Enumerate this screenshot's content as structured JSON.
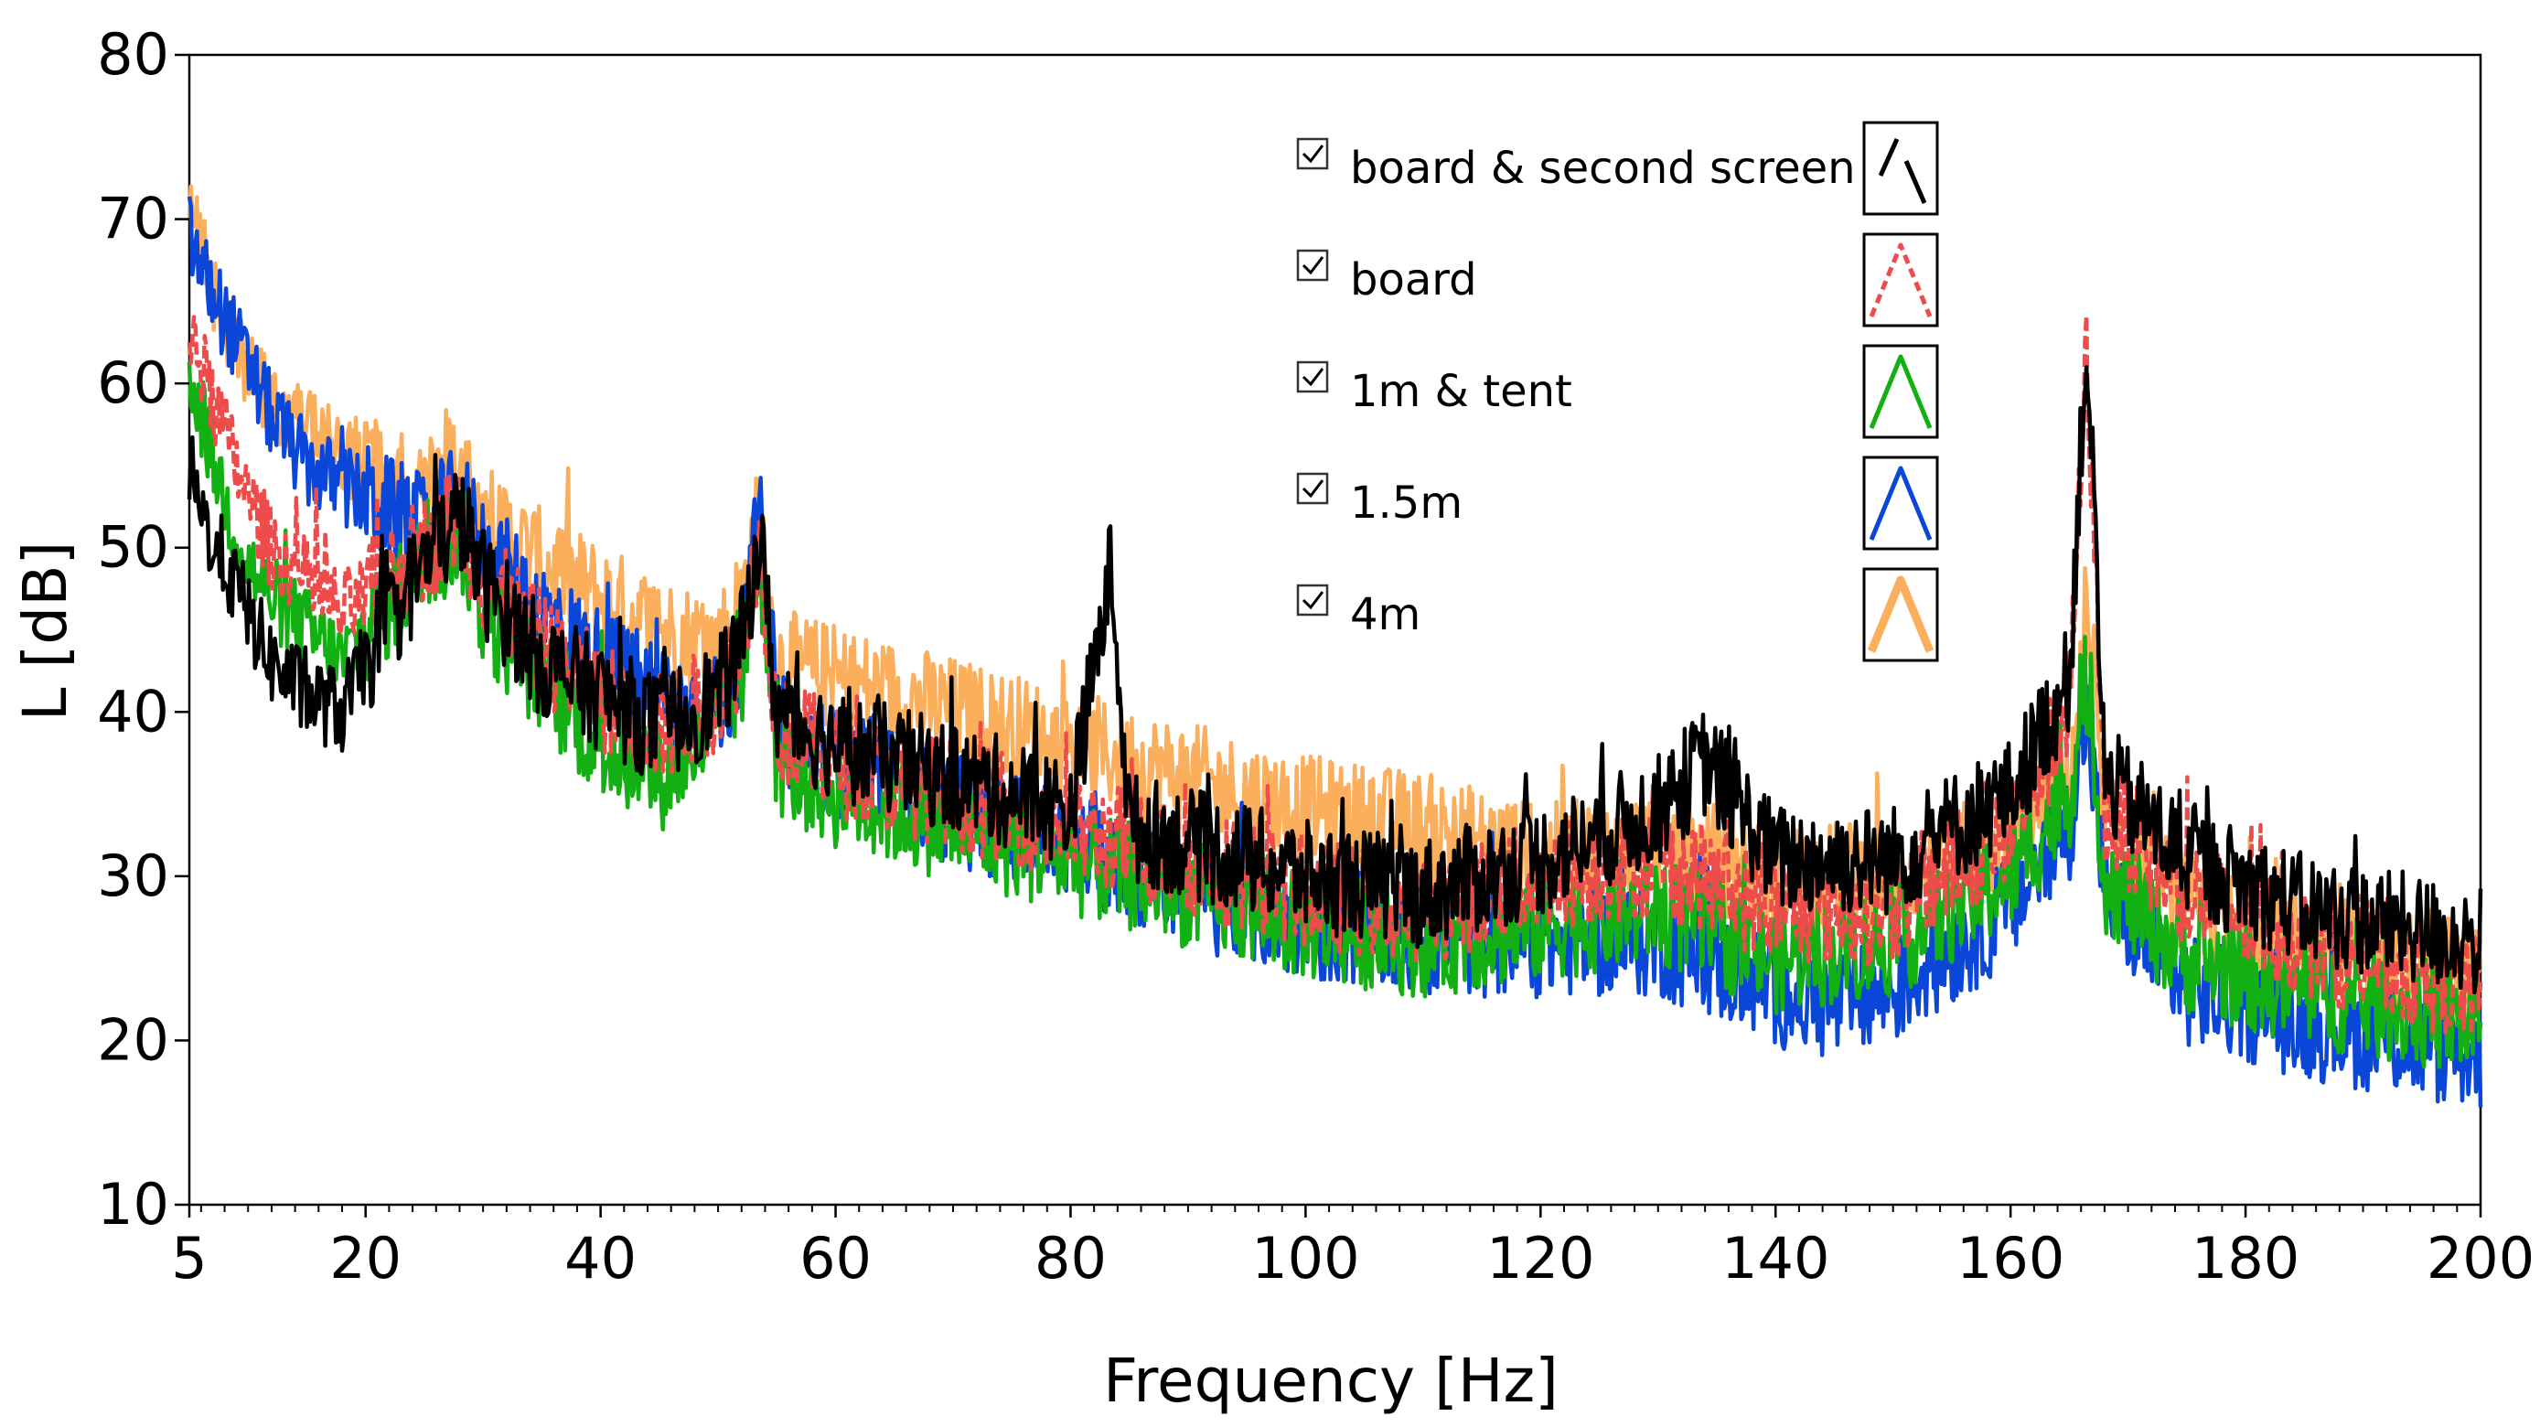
{
  "chart_data": {
    "type": "line",
    "title": "",
    "xlabel": "Frequency [Hz]",
    "ylabel": "L [dB]",
    "xlim": [
      5,
      200
    ],
    "ylim": [
      10,
      80
    ],
    "x_ticks": [
      "5",
      "20",
      "40",
      "60",
      "80",
      "100",
      "120",
      "140",
      "160",
      "180",
      "200"
    ],
    "y_ticks": [
      "10",
      "20",
      "30",
      "40",
      "50",
      "60",
      "70",
      "80"
    ],
    "grid": false,
    "legend_position": "top-center",
    "series": [
      {
        "name": "4m",
        "color": "#FBAE5B",
        "style": "solid",
        "checked": true,
        "x": [
          5,
          6,
          8,
          10,
          12,
          15,
          20,
          25,
          28,
          30,
          35,
          40,
          45,
          50,
          52,
          53.5,
          55,
          60,
          70,
          80,
          90,
          100,
          110,
          120,
          130,
          140,
          150,
          160,
          165,
          166.5,
          168,
          175,
          185,
          200
        ],
        "values": [
          72,
          68,
          64,
          61,
          59,
          57,
          55,
          53,
          55,
          52,
          49,
          47,
          45,
          44,
          47,
          52,
          43,
          42,
          40,
          38,
          36,
          34,
          33,
          31,
          32,
          30,
          30,
          32,
          36,
          45,
          33,
          28,
          26,
          24
        ]
      },
      {
        "name": "1.5m",
        "color": "#0A46D8",
        "style": "solid",
        "checked": true,
        "x": [
          5,
          6,
          8,
          10,
          12,
          15,
          20,
          25,
          28,
          30,
          35,
          40,
          45,
          50,
          52,
          53.5,
          55,
          60,
          70,
          80,
          90,
          100,
          110,
          120,
          130,
          140,
          145,
          150,
          160,
          165,
          166.5,
          168,
          175,
          185,
          200
        ],
        "values": [
          69,
          67,
          64,
          61,
          58,
          55,
          53,
          51,
          53,
          50,
          46,
          43,
          41,
          40,
          43,
          52,
          39,
          37,
          34,
          32,
          29,
          27,
          26,
          26,
          26,
          23,
          22,
          23,
          28,
          33,
          40,
          29,
          23,
          21,
          19
        ]
      },
      {
        "name": "1m & tent",
        "color": "#13B013",
        "style": "solid",
        "checked": true,
        "x": [
          5,
          6,
          8,
          10,
          12,
          15,
          18,
          20,
          25,
          28,
          30,
          35,
          40,
          45,
          50,
          52,
          53.5,
          55,
          60,
          70,
          80,
          90,
          100,
          110,
          120,
          130,
          140,
          150,
          160,
          165,
          166.5,
          168,
          175,
          185,
          200
        ],
        "values": [
          61,
          58,
          53,
          49,
          47,
          45,
          43,
          45,
          49,
          51,
          46,
          42,
          38,
          36,
          39,
          42,
          50,
          37,
          35,
          33,
          31,
          29,
          27,
          26,
          27,
          28,
          25,
          26,
          30,
          35,
          42,
          30,
          25,
          23,
          21
        ]
      },
      {
        "name": "board",
        "color": "#EE4B4B",
        "style": "dashed",
        "checked": true,
        "x": [
          5,
          6,
          8,
          10,
          12,
          15,
          18,
          20,
          25,
          28,
          30,
          35,
          40,
          45,
          50,
          52,
          53.5,
          55,
          60,
          70,
          80,
          90,
          100,
          110,
          120,
          130,
          140,
          150,
          160,
          165,
          166.5,
          168,
          175,
          185,
          200
        ],
        "values": [
          64,
          61,
          57,
          53,
          50,
          48,
          46,
          47,
          50,
          52,
          48,
          44,
          41,
          39,
          41,
          44,
          51,
          39,
          37,
          35,
          33,
          31,
          29,
          28,
          30,
          31,
          28,
          28,
          33,
          40,
          62,
          34,
          29,
          26,
          23
        ]
      },
      {
        "name": "board & second screen",
        "color": "#000000",
        "style": "solid",
        "checked": true,
        "x": [
          5,
          6,
          8,
          10,
          12,
          15,
          18,
          20,
          25,
          28,
          30,
          35,
          40,
          45,
          50,
          52,
          53.5,
          55,
          60,
          70,
          80,
          83.5,
          85,
          90,
          100,
          110,
          120,
          130,
          134,
          140,
          150,
          160,
          165,
          166.5,
          168,
          175,
          185,
          200
        ],
        "values": [
          55,
          52,
          49,
          46,
          43,
          41,
          40,
          43,
          49,
          52,
          48,
          43,
          41,
          39,
          41,
          44,
          51,
          40,
          38,
          36,
          34,
          49,
          33,
          32,
          30,
          29,
          31,
          34,
          37,
          31,
          31,
          35,
          42,
          63,
          36,
          31,
          28,
          26
        ]
      }
    ]
  }
}
